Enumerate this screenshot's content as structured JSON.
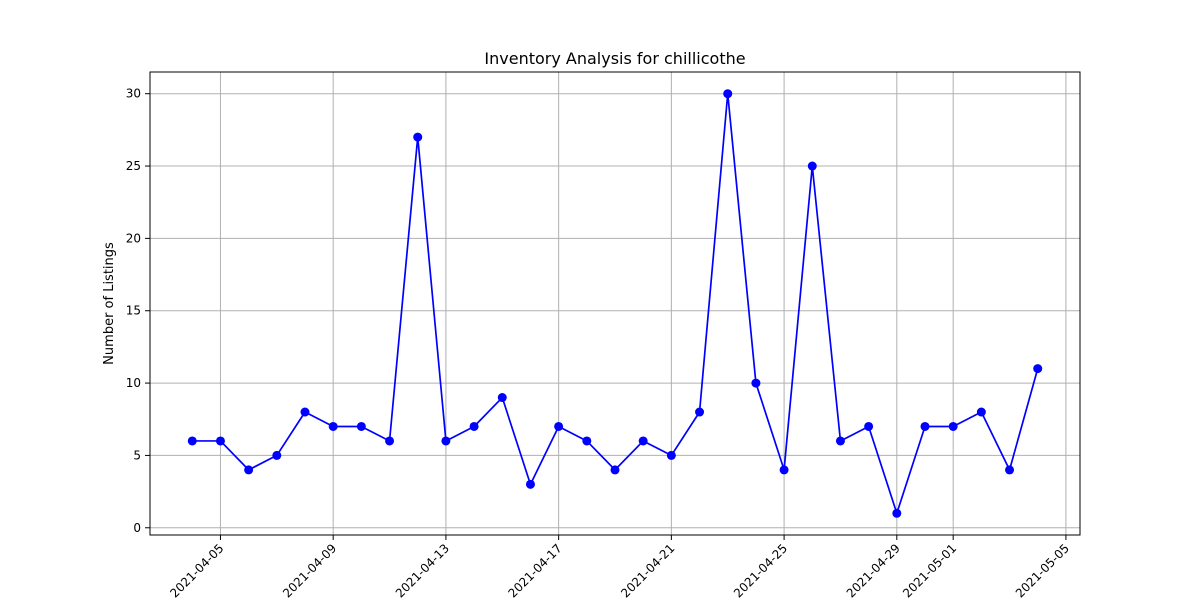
{
  "chart_data": {
    "type": "line",
    "title": "Inventory Analysis for chillicothe",
    "xlabel": "",
    "ylabel": "Number of Listings",
    "x": [
      "2021-04-04",
      "2021-04-05",
      "2021-04-06",
      "2021-04-07",
      "2021-04-08",
      "2021-04-09",
      "2021-04-10",
      "2021-04-11",
      "2021-04-12",
      "2021-04-13",
      "2021-04-14",
      "2021-04-15",
      "2021-04-16",
      "2021-04-17",
      "2021-04-18",
      "2021-04-19",
      "2021-04-20",
      "2021-04-21",
      "2021-04-22",
      "2021-04-23",
      "2021-04-24",
      "2021-04-25",
      "2021-04-26",
      "2021-04-27",
      "2021-04-28",
      "2021-04-29",
      "2021-04-30",
      "2021-05-01",
      "2021-05-02",
      "2021-05-03",
      "2021-05-04"
    ],
    "series": [
      {
        "values": [
          6,
          6,
          4,
          5,
          8,
          7,
          7,
          6,
          27,
          6,
          7,
          9,
          3,
          7,
          6,
          4,
          6,
          5,
          8,
          30,
          10,
          4,
          25,
          6,
          7,
          1,
          7,
          7,
          8,
          4,
          11
        ],
        "color": "#0000ff",
        "marker": "circle"
      }
    ],
    "xlim": [
      "2021-04-02T12:00",
      "2021-05-05T12:00"
    ],
    "ylim": [
      -0.5,
      31.5
    ],
    "x_ticks": [
      "2021-04-05",
      "2021-04-09",
      "2021-04-13",
      "2021-04-17",
      "2021-04-21",
      "2021-04-25",
      "2021-04-29",
      "2021-05-01",
      "2021-05-05"
    ],
    "y_ticks": [
      0,
      5,
      10,
      15,
      20,
      25,
      30
    ],
    "grid": true,
    "legend": "none"
  }
}
